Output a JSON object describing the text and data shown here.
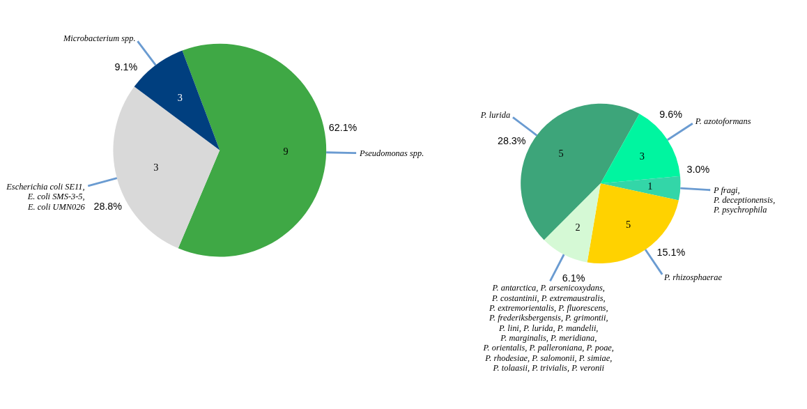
{
  "chart_data": [
    {
      "type": "pie",
      "categories": [
        "Pseudomonas spp.",
        "Escherichia coli SE11,\nE. coli SMS-3-5,\nE. coli UMN026",
        "Microbacterium spp."
      ],
      "values": [
        62.1,
        28.8,
        9.1
      ],
      "value_labels": [
        "62.1%",
        "28.8%",
        "9.1%"
      ],
      "colors": [
        "#3fa845",
        "#d9d9d9",
        "#003f7f"
      ],
      "annotations": [
        {
          "text": "9",
          "x": "Pseudomonas spp."
        },
        {
          "text": "3",
          "x": "Escherichia coli SE11,\nE. coli SMS-3-5,\nE. coli UMN026"
        },
        {
          "text": "3",
          "x": "Microbacterium spp."
        }
      ]
    },
    {
      "type": "pie",
      "categories": [
        "P. lurida",
        "P. azotoformans",
        "P fragi,\nP. deceptionensis,\nP. psychrophila",
        "P. rhizosphaerae",
        "P. antarctica, P. arsenicoxydans,\nP. costantinii, P. extremaustralis,\nP. extremorientalis, P. fluorescens,\nP. frederiksbergensis, P. grimontii,\nP. lini, P. lurida, P. mandelii,\nP. marginalis, P. meridiana,\nP. orientalis, P. palleroniana, P. poae,\nP. rhodesiae, P. salomonii, P. simiae,\nP. tolaasii, P. trivialis, P. veronii"
      ],
      "values": [
        28.3,
        9.6,
        3.0,
        15.1,
        6.1
      ],
      "value_labels": [
        "28.3%",
        "9.6%",
        "3.0%",
        "15.1%",
        "6.1%"
      ],
      "colors": [
        "#3da57a",
        "#00f5a0",
        "#33d6a8",
        "#ffd200",
        "#d5f9d5"
      ],
      "annotations": [
        {
          "text": "5",
          "x": "P. lurida"
        },
        {
          "text": "3",
          "x": "P. azotoformans"
        },
        {
          "text": "1",
          "x": "P fragi,\nP. deceptionensis,\nP. psychrophila"
        },
        {
          "text": "5",
          "x": "P. rhizosphaerae"
        },
        {
          "text": "2",
          "x": "P. antarctica, P. arsenicoxydans,\nP. costantinii, P. extremaustralis,\nP. extremorientalis, P. fluorescens,\nP. frederiksbergensis, P. grimontii,\nP. lini, P. lurida, P. mandelii,\nP. marginalis, P. meridiana,\nP. orientalis, P. palleroniana, P. poae,\nP. rhodesiae, P. salomonii, P. simiae,\nP. tolaasii, P. trivialis, P. veronii"
        }
      ]
    }
  ]
}
